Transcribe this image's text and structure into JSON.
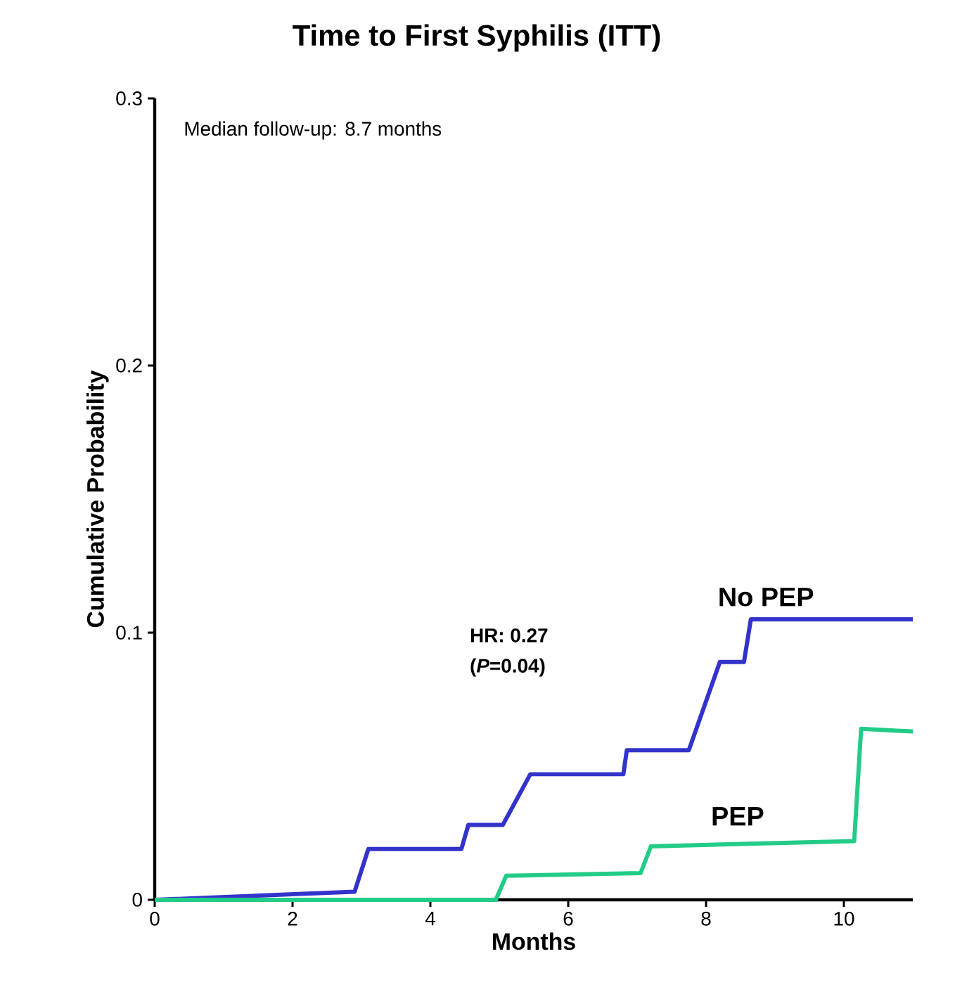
{
  "chart_data": {
    "type": "line",
    "title": "Time to First Syphilis (ITT)",
    "xlabel": "Months",
    "ylabel": "Cumulative Probability",
    "x": [
      0,
      2.9,
      3.1,
      4.45,
      4.55,
      5.05,
      5.45,
      6.8,
      6.85,
      7.75,
      8.2,
      8.55,
      8.65,
      11
    ],
    "series": [
      {
        "name": "No PEP",
        "color": "#3333cc",
        "values": [
          0,
          0.003,
          0.019,
          0.019,
          0.028,
          0.028,
          0.047,
          0.047,
          0.056,
          0.056,
          0.089,
          0.089,
          0.105,
          0.105
        ]
      },
      {
        "name": "PEP",
        "color": "#22cc88",
        "x": [
          0,
          4.95,
          5.1,
          7.05,
          7.2,
          10.15,
          10.25,
          11
        ],
        "values": [
          0,
          0,
          0.009,
          0.01,
          0.02,
          0.022,
          0.064,
          0.063
        ]
      }
    ],
    "xlim": [
      0,
      11
    ],
    "xticks": [
      0,
      2,
      4,
      6,
      8,
      10
    ],
    "ylim": [
      0,
      0.3
    ],
    "yticks": [
      0,
      0.1,
      0.2,
      0.3
    ],
    "annotations": [
      "Median follow-up: 8.7 months",
      "HR: 0.27",
      "(*P*=0.04)"
    ],
    "grid": false,
    "legend": false,
    "marker": "none",
    "line_style": "solid"
  }
}
